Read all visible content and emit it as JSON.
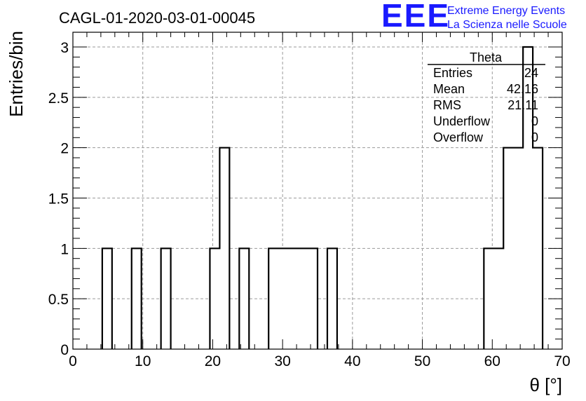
{
  "chart_data": {
    "type": "bar",
    "title": "CAGL-01-2020-03-01-00045",
    "xlabel": "θ [°]",
    "ylabel": "Entries/bin",
    "xlim": [
      0,
      70
    ],
    "ylim": [
      0,
      3
    ],
    "grid": true,
    "x_ticks": [
      0,
      10,
      20,
      30,
      40,
      50,
      60,
      70
    ],
    "x_tick_labels": [
      "0",
      "10",
      "20",
      "30",
      "40",
      "50",
      "60",
      "70"
    ],
    "y_ticks": [
      0,
      0.5,
      1,
      1.5,
      2,
      2.5,
      3
    ],
    "y_tick_labels": [
      "0",
      "0.5",
      "1",
      "1.5",
      "2",
      "2.5",
      "3"
    ],
    "bins": [
      {
        "lo": 4.2,
        "hi": 5.6,
        "count": 1
      },
      {
        "lo": 8.4,
        "hi": 9.8,
        "count": 1
      },
      {
        "lo": 12.6,
        "hi": 14.0,
        "count": 1
      },
      {
        "lo": 19.6,
        "hi": 21.0,
        "count": 1
      },
      {
        "lo": 21.0,
        "hi": 22.4,
        "count": 2
      },
      {
        "lo": 23.8,
        "hi": 25.2,
        "count": 1
      },
      {
        "lo": 28.0,
        "hi": 29.4,
        "count": 1
      },
      {
        "lo": 29.4,
        "hi": 30.8,
        "count": 1
      },
      {
        "lo": 30.8,
        "hi": 32.2,
        "count": 1
      },
      {
        "lo": 32.2,
        "hi": 33.6,
        "count": 1
      },
      {
        "lo": 33.6,
        "hi": 35.0,
        "count": 1
      },
      {
        "lo": 36.4,
        "hi": 37.8,
        "count": 1
      },
      {
        "lo": 58.8,
        "hi": 60.2,
        "count": 1
      },
      {
        "lo": 60.2,
        "hi": 61.6,
        "count": 1
      },
      {
        "lo": 61.6,
        "hi": 63.0,
        "count": 2
      },
      {
        "lo": 63.0,
        "hi": 64.4,
        "count": 2
      },
      {
        "lo": 64.4,
        "hi": 65.8,
        "count": 3
      },
      {
        "lo": 65.8,
        "hi": 67.2,
        "count": 2
      }
    ],
    "stats_box": {
      "title": "Theta",
      "rows": [
        {
          "label": "Entries",
          "value": "24"
        },
        {
          "label": "Mean",
          "value": "42.16"
        },
        {
          "label": "RMS",
          "value": "21.11"
        },
        {
          "label": "Underflow",
          "value": "0"
        },
        {
          "label": "Overflow",
          "value": "0"
        }
      ]
    }
  },
  "logo": {
    "mark": "EEE",
    "line1": "Extreme Energy Events",
    "line2": "La Scienza nelle Scuole",
    "color": "#1a1aff"
  }
}
